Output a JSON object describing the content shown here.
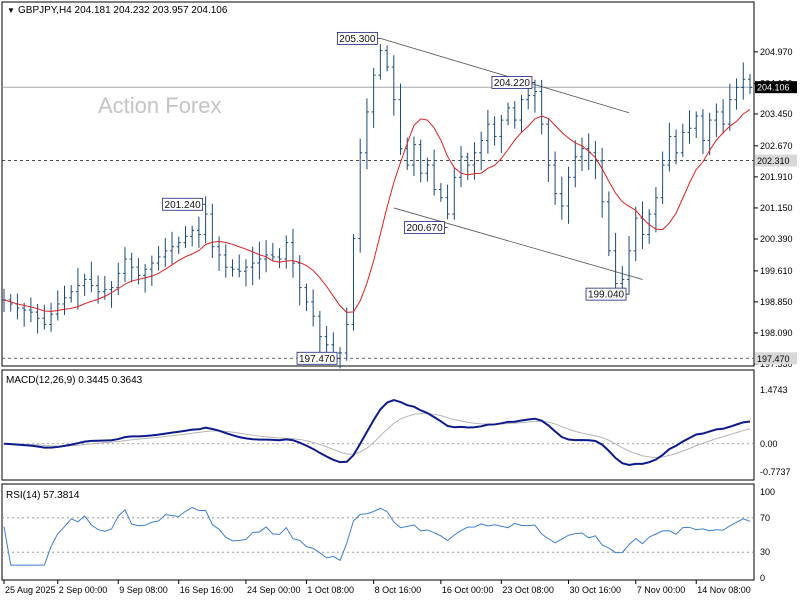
{
  "chart_data": {
    "type": "line",
    "symbol_header": "GBPJPY,H4  204.181 204.232 203.957 204.106",
    "watermark": "Action Forex",
    "main": {
      "ylim": [
        197.33,
        205.75
      ],
      "y_ticks": [
        "204.970",
        "204.190",
        "203.450",
        "202.670",
        "201.910",
        "201.150",
        "200.390",
        "199.610",
        "198.850",
        "198.090",
        "197.330"
      ],
      "price_axis_labels": [
        {
          "text": "204.106",
          "value": 204.106,
          "style": "dark"
        },
        {
          "text": "202.310",
          "value": 202.31,
          "style": "light"
        },
        {
          "text": "197.470",
          "value": 197.47,
          "style": "light"
        }
      ],
      "horizontal_lines": [
        {
          "value": 204.106,
          "style": "solid"
        },
        {
          "value": 202.31,
          "style": "dashed"
        },
        {
          "value": 197.47,
          "style": "dashed"
        }
      ],
      "annotations": [
        {
          "text": "205.300",
          "t": 56,
          "value": 205.3
        },
        {
          "text": "204.220",
          "t": 79,
          "value": 204.22
        },
        {
          "text": "201.240",
          "t": 30,
          "value": 201.24
        },
        {
          "text": "200.670",
          "t": 66,
          "value": 200.67
        },
        {
          "text": "199.040",
          "t": 93,
          "value": 199.04
        },
        {
          "text": "197.470",
          "t": 50,
          "value": 197.47
        }
      ],
      "trendlines": [
        {
          "t1": 56,
          "v1": 205.3,
          "t2": 93,
          "v2": 203.48
        },
        {
          "t1": 58,
          "v1": 201.15,
          "t2": 95,
          "v2": 199.4
        }
      ],
      "close_waypoints": [
        [
          0,
          198.9
        ],
        [
          2,
          198.7
        ],
        [
          4,
          198.6
        ],
        [
          6,
          198.3
        ],
        [
          8,
          198.8
        ],
        [
          10,
          199.1
        ],
        [
          12,
          199.4
        ],
        [
          14,
          199.1
        ],
        [
          16,
          199.2
        ],
        [
          18,
          199.9
        ],
        [
          20,
          199.5
        ],
        [
          22,
          199.8
        ],
        [
          24,
          200.1
        ],
        [
          26,
          200.3
        ],
        [
          28,
          200.6
        ],
        [
          29,
          200.5
        ],
        [
          30,
          201.0
        ],
        [
          31,
          200.2
        ],
        [
          32,
          200.0
        ],
        [
          33,
          199.7
        ],
        [
          35,
          199.6
        ],
        [
          37,
          199.8
        ],
        [
          39,
          200.0
        ],
        [
          41,
          199.9
        ],
        [
          42,
          200.3
        ],
        [
          43,
          199.8
        ],
        [
          44,
          199.2
        ],
        [
          46,
          198.5
        ],
        [
          47,
          198.0
        ],
        [
          48,
          197.8
        ],
        [
          49,
          197.6
        ],
        [
          50,
          197.6
        ],
        [
          51,
          198.3
        ],
        [
          52,
          200.4
        ],
        [
          53,
          202.5
        ],
        [
          54,
          203.5
        ],
        [
          55,
          204.4
        ],
        [
          56,
          205.0
        ],
        [
          57,
          204.6
        ],
        [
          58,
          203.8
        ],
        [
          59,
          202.6
        ],
        [
          60,
          202.2
        ],
        [
          61,
          202.7
        ],
        [
          62,
          202.0
        ],
        [
          63,
          202.2
        ],
        [
          64,
          201.6
        ],
        [
          65,
          201.4
        ],
        [
          66,
          201.0
        ],
        [
          67,
          201.9
        ],
        [
          68,
          202.4
        ],
        [
          69,
          202.2
        ],
        [
          70,
          202.5
        ],
        [
          71,
          202.8
        ],
        [
          72,
          203.2
        ],
        [
          73,
          202.9
        ],
        [
          74,
          203.3
        ],
        [
          75,
          203.6
        ],
        [
          76,
          203.3
        ],
        [
          77,
          203.8
        ],
        [
          78,
          203.9
        ],
        [
          79,
          204.0
        ],
        [
          80,
          203.2
        ],
        [
          81,
          202.2
        ],
        [
          82,
          201.5
        ],
        [
          83,
          201.2
        ],
        [
          84,
          201.9
        ],
        [
          85,
          202.4
        ],
        [
          86,
          202.6
        ],
        [
          87,
          202.5
        ],
        [
          88,
          202.3
        ],
        [
          89,
          201.3
        ],
        [
          90,
          200.1
        ],
        [
          91,
          199.3
        ],
        [
          92,
          199.4
        ],
        [
          93,
          200.1
        ],
        [
          94,
          200.9
        ],
        [
          95,
          200.5
        ],
        [
          96,
          201.0
        ],
        [
          97,
          201.4
        ],
        [
          98,
          202.2
        ],
        [
          99,
          202.9
        ],
        [
          100,
          202.5
        ],
        [
          101,
          203.0
        ],
        [
          102,
          203.1
        ],
        [
          103,
          203.4
        ],
        [
          104,
          202.8
        ],
        [
          105,
          203.3
        ],
        [
          106,
          203.5
        ],
        [
          107,
          203.2
        ],
        [
          108,
          203.8
        ],
        [
          109,
          204.1
        ],
        [
          110,
          204.3
        ],
        [
          111,
          204.1
        ]
      ],
      "ma_series": {
        "name": "",
        "color": "#e02020"
      }
    },
    "macd": {
      "label": "MACD(12,26,9) 0.3445 0.3643",
      "ylim": [
        -0.7737,
        1.4743
      ],
      "y_ticks": [
        "1.4743",
        "0.00",
        "-0.7737"
      ],
      "main_color": "#0d1a8c",
      "signal_color": "#b4b4b4"
    },
    "rsi": {
      "label": "RSI(14) 57.3814",
      "ylim": [
        0,
        100
      ],
      "y_ticks": [
        "100",
        "70",
        "30",
        "0"
      ],
      "color": "#3f7fd8"
    },
    "x_ticks": [
      {
        "label": "25 Aug 2025",
        "t": 0
      },
      {
        "label": "2 Sep 00:00",
        "t": 8
      },
      {
        "label": "9 Sep 08:00",
        "t": 17
      },
      {
        "label": "16 Sep 16:00",
        "t": 26
      },
      {
        "label": "24 Sep 00:00",
        "t": 36
      },
      {
        "label": "1 Oct 08:00",
        "t": 45
      },
      {
        "label": "8 Oct 16:00",
        "t": 55
      },
      {
        "label": "16 Oct 00:00",
        "t": 65
      },
      {
        "label": "23 Oct 08:00",
        "t": 74
      },
      {
        "label": "30 Oct 16:00",
        "t": 84
      },
      {
        "label": "7 Nov 00:00",
        "t": 94
      },
      {
        "label": "14 Nov 08:00",
        "t": 103
      }
    ],
    "t_range": [
      0,
      111
    ],
    "grid": false,
    "colors": {
      "candle": "#1a4a78",
      "axis": "#000000",
      "annotation_box": "#1a237e"
    }
  }
}
